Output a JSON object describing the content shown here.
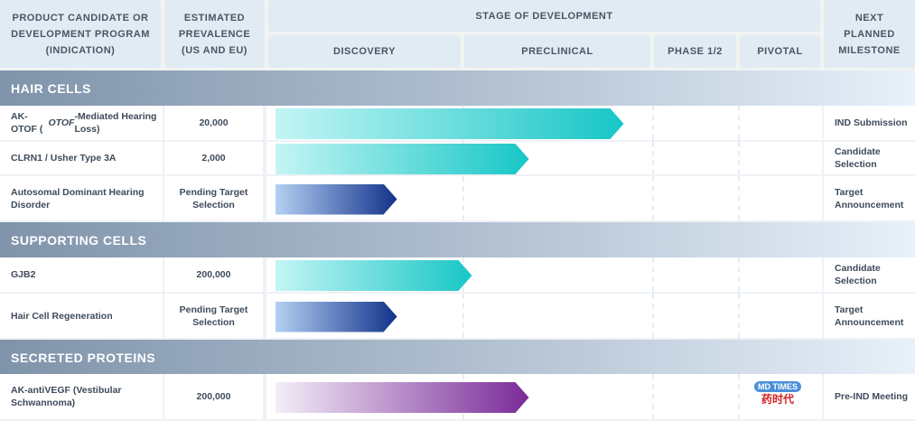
{
  "headers": {
    "product": "PRODUCT CANDIDATE OR DEVELOPMENT PROGRAM (INDICATION)",
    "prevalence": "ESTIMATED PREVALENCE (US AND EU)",
    "stage": "STAGE OF DEVELOPMENT",
    "milestone": "NEXT PLANNED MILESTONE",
    "stages": [
      "DISCOVERY",
      "PRECLINICAL",
      "PHASE 1/2",
      "PIVOTAL"
    ]
  },
  "sections": [
    {
      "title": "HAIR CELLS",
      "rows": [
        {
          "name": "AK-OTOF (OTOF-Mediated Hearing Loss)",
          "prevalence": "20,000",
          "progress_stage_units": 1.85,
          "color": "teal",
          "milestone": "IND Submission"
        },
        {
          "name": "CLRN1 / Usher Type 3A",
          "prevalence": "2,000",
          "progress_stage_units": 1.35,
          "color": "teal",
          "milestone": "Candidate Selection"
        },
        {
          "name": "Autosomal Dominant Hearing Disorder",
          "prevalence": "Pending Target Selection",
          "progress_stage_units": 0.65,
          "color": "blue",
          "milestone": "Target Announcement"
        }
      ]
    },
    {
      "title": "SUPPORTING CELLS",
      "rows": [
        {
          "name": "GJB2",
          "prevalence": "200,000",
          "progress_stage_units": 1.05,
          "color": "teal",
          "milestone": "Candidate Selection"
        },
        {
          "name": "Hair Cell Regeneration",
          "prevalence": "Pending Target Selection",
          "progress_stage_units": 0.65,
          "color": "blue",
          "milestone": "Target Announcement"
        }
      ]
    },
    {
      "title": "SECRETED PROTEINS",
      "rows": [
        {
          "name": "AK-antiVEGF (Vestibular Schwannoma)",
          "prevalence": "200,000",
          "progress_stage_units": 1.35,
          "color": "purple",
          "milestone": "Pre-IND Meeting"
        }
      ]
    }
  ],
  "colors": {
    "teal": [
      "#c4f5f5",
      "#17c6c6"
    ],
    "blue": [
      "#b3d0f3",
      "#12328a"
    ],
    "purple": [
      "#f3eef8",
      "#7a2a98"
    ]
  },
  "watermark": "MD TIMES 药时代"
}
